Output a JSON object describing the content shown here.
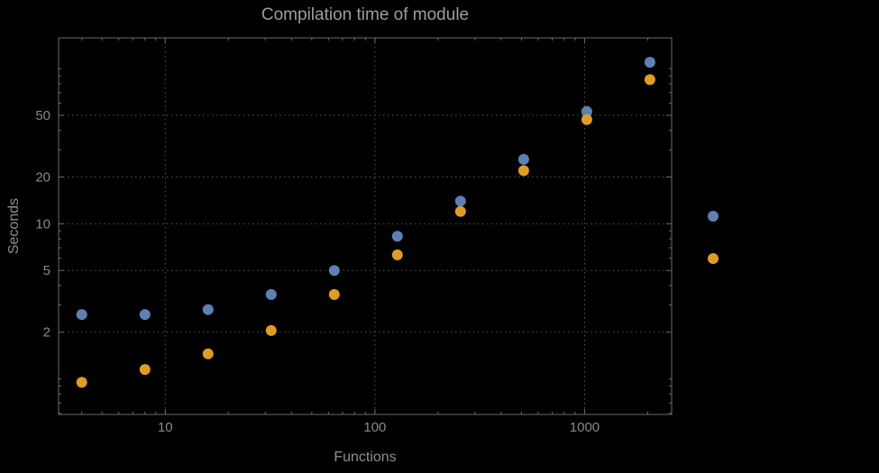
{
  "chart_data": {
    "type": "scatter",
    "title": "Compilation time of module",
    "xlabel": "Functions",
    "ylabel": "Seconds",
    "x_scale": "log",
    "y_scale": "log",
    "xlim": [
      3.1,
      2600
    ],
    "ylim": [
      0.59,
      158
    ],
    "grid": "dotted major gridlines",
    "x": [
      4,
      8,
      16,
      32,
      64,
      128,
      256,
      512,
      1024,
      2048
    ],
    "series": [
      {
        "id": "blue",
        "color": "#5e81b5",
        "values": [
          2.6,
          2.6,
          2.8,
          3.5,
          5.0,
          8.3,
          14,
          26,
          53,
          110
        ]
      },
      {
        "id": "orange",
        "color": "#e19c24",
        "values": [
          0.95,
          1.15,
          1.45,
          2.05,
          3.5,
          6.3,
          12,
          22,
          47,
          85
        ]
      }
    ],
    "x_ticks": {
      "values": [
        10,
        100,
        1000
      ],
      "labels": [
        "10",
        "100",
        "1000"
      ]
    },
    "y_ticks": {
      "values": [
        2,
        5,
        10,
        20,
        50
      ],
      "labels": [
        "2",
        "5",
        "10",
        "20",
        "50"
      ]
    },
    "legend": {
      "position": "right-outside",
      "markers": [
        {
          "color": "#5e81b5"
        },
        {
          "color": "#e19c24"
        }
      ]
    },
    "colors": {
      "background": "#000000",
      "frame": "#6a6a6a",
      "gridline": "#565656",
      "tick_label": "#8a8a8a",
      "title": "#9d9d9d",
      "axis_label": "#8f8f8f"
    }
  }
}
